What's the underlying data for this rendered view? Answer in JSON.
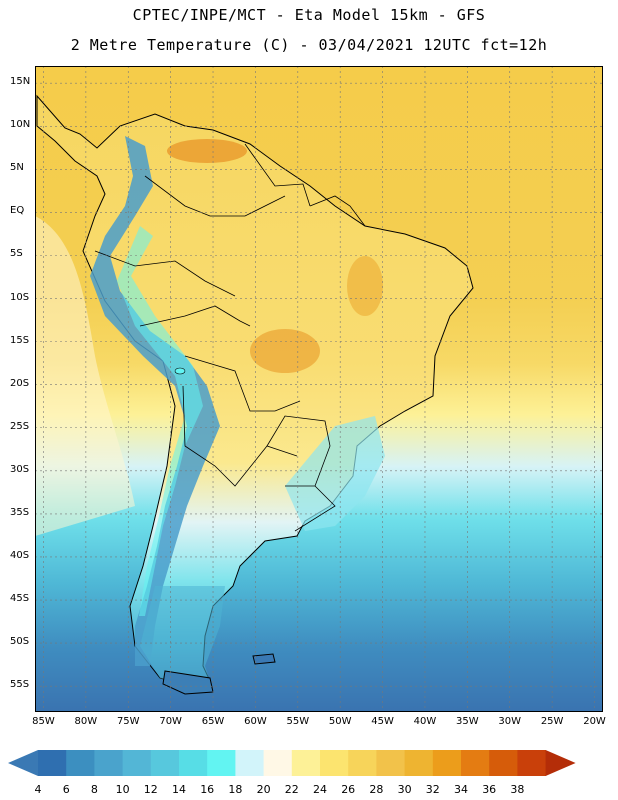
{
  "header": {
    "title_line1": "CPTEC/INPE/MCT -  Eta Model 15km - GFS",
    "title_line2": "2 Metre Temperature (C) - 03/04/2021 12UTC fct=12h"
  },
  "map": {
    "region": "South America",
    "lat_labels": [
      "15N",
      "10N",
      "5N",
      "EQ",
      "5S",
      "10S",
      "15S",
      "20S",
      "25S",
      "30S",
      "35S",
      "40S",
      "45S",
      "50S",
      "55S"
    ],
    "lon_labels": [
      "85W",
      "80W",
      "75W",
      "70W",
      "65W",
      "60W",
      "55W",
      "50W",
      "45W",
      "40W",
      "35W",
      "30W",
      "25W",
      "20W"
    ],
    "lat_values": [
      15,
      10,
      5,
      0,
      -5,
      -10,
      -15,
      -20,
      -25,
      -30,
      -35,
      -40,
      -45,
      -50,
      -55
    ],
    "lon_values": [
      -85,
      -80,
      -75,
      -70,
      -65,
      -60,
      -55,
      -50,
      -45,
      -40,
      -35,
      -30,
      -25,
      -20
    ],
    "lon_range": [
      -86,
      -19
    ],
    "lat_range": [
      -58,
      17
    ]
  },
  "colorbar": {
    "labels": [
      "4",
      "6",
      "8",
      "10",
      "12",
      "14",
      "16",
      "18",
      "20",
      "22",
      "24",
      "26",
      "28",
      "30",
      "32",
      "34",
      "36",
      "38"
    ],
    "colors": [
      "#3a79b4",
      "#2f6fb0",
      "#3c8fc0",
      "#4aa3cc",
      "#53b6d6",
      "#57c8dd",
      "#57dde6",
      "#62f4f2",
      "#d2f4fa",
      "#fff8e6",
      "#fdf197",
      "#fce46f",
      "#f7d45a",
      "#f2c24a",
      "#eeb431",
      "#ec9d1b",
      "#e47c12",
      "#d65c0a",
      "#c9400a",
      "#b42d08"
    ],
    "units": "C"
  },
  "colors": {
    "ocean_tropical": "#f5cc4a",
    "ocean_mid": "#fdf197",
    "ocean_cool": "#5ad4e0",
    "ocean_cold": "#3a79b4",
    "land_warm": "#f9dd72",
    "land_hot": "#e99a2c",
    "andes": "#4a9ecb",
    "coast_line": "#000000"
  }
}
